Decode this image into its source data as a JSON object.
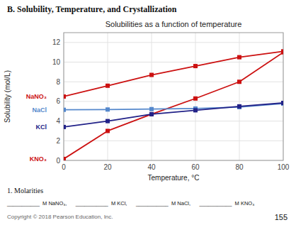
{
  "chart_data": {
    "type": "line",
    "title": "Solubilities as a function of temperature",
    "x_label": "Temperature, °C",
    "y_label": "Solubility (mol/L)",
    "x": [
      0,
      20,
      40,
      60,
      80,
      100
    ],
    "xlim": [
      0,
      100
    ],
    "ylim": [
      0,
      13
    ],
    "xticks": [
      0,
      20,
      40,
      60,
      80,
      100
    ],
    "yticks": [
      0,
      2,
      4,
      6,
      8,
      10,
      12
    ],
    "grid": true,
    "marker": "square",
    "line_style": "solid",
    "series": [
      {
        "name": "NaNO₃",
        "color": "#cc1111",
        "values": [
          6.5,
          7.6,
          8.7,
          9.6,
          10.5,
          11.1
        ]
      },
      {
        "name": "KNO₃",
        "color": "#cc1111",
        "values": [
          0.15,
          3.0,
          4.7,
          6.3,
          8.0,
          11.0
        ]
      },
      {
        "name": "NaCl",
        "color": "#5588cc",
        "values": [
          5.15,
          5.18,
          5.22,
          5.28,
          5.42,
          5.78
        ]
      },
      {
        "name": "KCl",
        "color": "#222288",
        "values": [
          3.4,
          4.0,
          4.7,
          5.1,
          5.5,
          5.85
        ]
      }
    ],
    "annotations": [
      "B. Solubility, Temperature, and Crystallization",
      "1.   Molarities",
      "___________  M NaNO₃,      ___________  M KCl,      ___________  M NaCl,      ___________  M KNO₃",
      "Copyright © 2018 Pearson Education, Inc.",
      "155"
    ]
  }
}
